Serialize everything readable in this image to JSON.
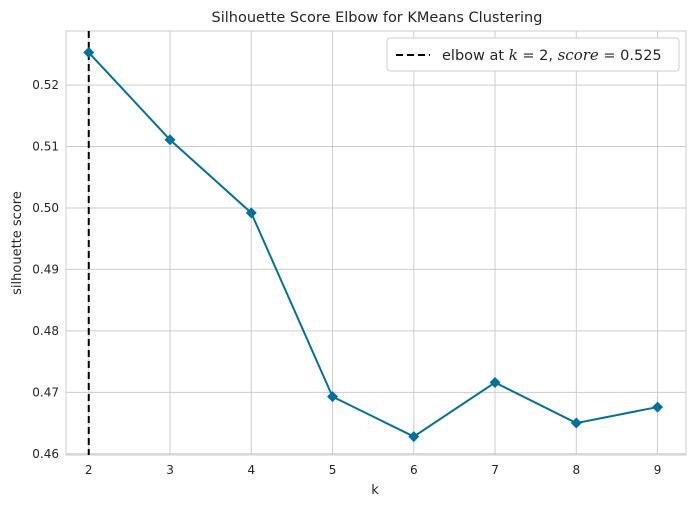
{
  "chart_data": {
    "type": "line",
    "title": "Silhouette Score Elbow for KMeans Clustering",
    "xlabel": "k",
    "ylabel": "silhouette score",
    "x": [
      2,
      3,
      4,
      5,
      6,
      7,
      8,
      9
    ],
    "series": [
      {
        "values": [
          0.5253,
          0.5111,
          0.4992,
          0.4693,
          0.4628,
          0.4716,
          0.465,
          0.4676
        ]
      }
    ],
    "x_ticks": [
      "2",
      "3",
      "4",
      "5",
      "6",
      "7",
      "8",
      "9"
    ],
    "y_ticks": [
      "0.46",
      "0.47",
      "0.48",
      "0.49",
      "0.50",
      "0.51",
      "0.52"
    ],
    "xlim": [
      1.72,
      9.35
    ],
    "ylim": [
      0.4598,
      0.5288
    ],
    "elbow": {
      "k": 2,
      "score": 0.525,
      "legend_prefix": "elbow at ",
      "legend_k": "k",
      "legend_k_eq": " = 2, ",
      "legend_score": "score",
      "legend_score_eq": " = 0.525"
    },
    "grid": true,
    "legend_position": "top-right",
    "colors": {
      "line": "#0072a0",
      "elbow": "#000000",
      "grid": "#cccccc",
      "axes": "#cccccc",
      "text": "#262626"
    },
    "marker": "diamond"
  }
}
